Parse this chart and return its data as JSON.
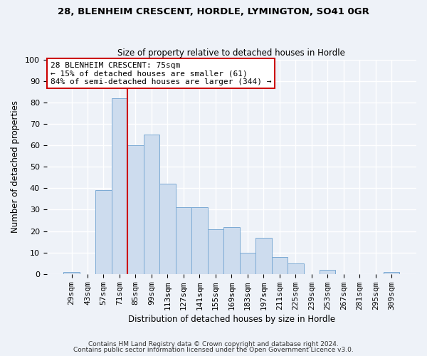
{
  "title": "28, BLENHEIM CRESCENT, HORDLE, LYMINGTON, SO41 0GR",
  "subtitle": "Size of property relative to detached houses in Hordle",
  "xlabel": "Distribution of detached houses by size in Hordle",
  "ylabel": "Number of detached properties",
  "footer_line1": "Contains HM Land Registry data © Crown copyright and database right 2024.",
  "footer_line2": "Contains public sector information licensed under the Open Government Licence v3.0.",
  "bin_labels": [
    "29sqm",
    "43sqm",
    "57sqm",
    "71sqm",
    "85sqm",
    "99sqm",
    "113sqm",
    "127sqm",
    "141sqm",
    "155sqm",
    "169sqm",
    "183sqm",
    "197sqm",
    "211sqm",
    "225sqm",
    "239sqm",
    "253sqm",
    "267sqm",
    "281sqm",
    "295sqm",
    "309sqm"
  ],
  "bin_values": [
    1,
    0,
    39,
    82,
    60,
    65,
    42,
    31,
    31,
    21,
    22,
    10,
    17,
    8,
    5,
    0,
    2,
    0,
    0,
    0,
    1
  ],
  "bar_color": "#cddcee",
  "bar_edge_color": "#7baad4",
  "annotation_title": "28 BLENHEIM CRESCENT: 75sqm",
  "annotation_line1": "← 15% of detached houses are smaller (61)",
  "annotation_line2": "84% of semi-detached houses are larger (344) →",
  "annotation_box_color": "#ffffff",
  "annotation_box_edge_color": "#cc0000",
  "vline_color": "#cc0000",
  "vline_x": 3.5,
  "ylim": [
    0,
    100
  ],
  "yticks": [
    0,
    10,
    20,
    30,
    40,
    50,
    60,
    70,
    80,
    90,
    100
  ],
  "background_color": "#eef2f8",
  "plot_bg_color": "#eef2f8",
  "grid_color": "#ffffff",
  "title_fontsize": 9.5,
  "subtitle_fontsize": 8.5,
  "axis_label_fontsize": 8.5,
  "tick_fontsize": 8,
  "annotation_fontsize": 8,
  "footer_fontsize": 6.5
}
